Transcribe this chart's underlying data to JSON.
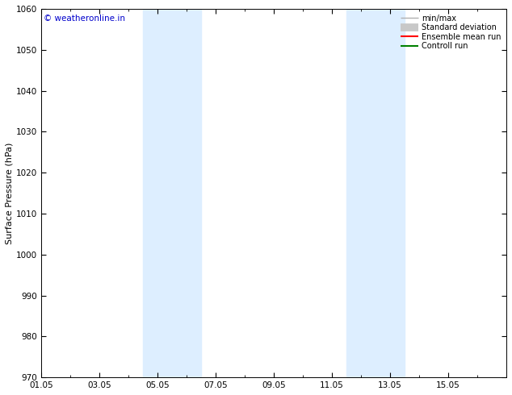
{
  "ylabel": "Surface Pressure (hPa)",
  "ylim": [
    970,
    1060
  ],
  "yticks": [
    970,
    980,
    990,
    1000,
    1010,
    1020,
    1030,
    1040,
    1050,
    1060
  ],
  "xtick_labels": [
    "01.05",
    "03.05",
    "05.05",
    "07.05",
    "09.05",
    "11.05",
    "13.05",
    "15.05"
  ],
  "xtick_positions": [
    0,
    2,
    4,
    6,
    8,
    10,
    12,
    14
  ],
  "xlim": [
    0,
    16
  ],
  "bg_color": "#ffffff",
  "plot_bg_color": "#ffffff",
  "shaded_bands": [
    {
      "x_start": 3.5,
      "x_end": 5.5,
      "color": "#ddeeff"
    },
    {
      "x_start": 10.5,
      "x_end": 12.5,
      "color": "#ddeeff"
    }
  ],
  "watermark_text": "© weatheronline.in",
  "watermark_color": "#0000cc",
  "legend_items": [
    {
      "label": "min/max",
      "color": "#b0b0b0",
      "lw": 1.0,
      "style": "-",
      "type": "line"
    },
    {
      "label": "Standard deviation",
      "color": "#c8c8c8",
      "lw": 7,
      "style": "-",
      "type": "line"
    },
    {
      "label": "Ensemble mean run",
      "color": "#ff0000",
      "lw": 1.5,
      "style": "-",
      "type": "line"
    },
    {
      "label": "Controll run",
      "color": "#008000",
      "lw": 1.5,
      "style": "-",
      "type": "line"
    }
  ],
  "title_fontsize": 9.5,
  "axis_label_fontsize": 8,
  "tick_fontsize": 7.5,
  "watermark_fontsize": 7.5,
  "legend_fontsize": 7.0
}
